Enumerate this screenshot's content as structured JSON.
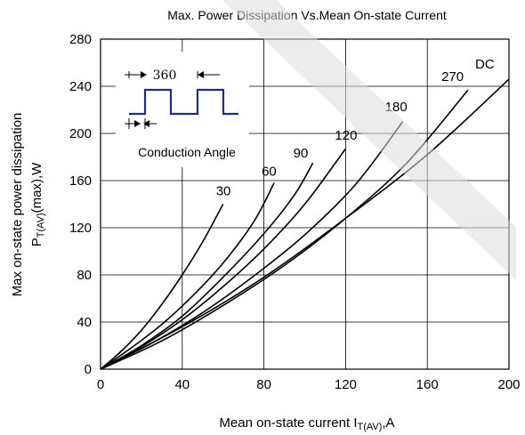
{
  "chart_data": {
    "type": "line",
    "title": "Max. Power Dissipation Vs.Mean On-state Current",
    "xlabel": "Mean on-state current I",
    "xlabel_sub": "T(AV)",
    "xlabel_suffix": ",A",
    "ylabel_line1": "Max on-state power dissipation",
    "ylabel_line2": "P",
    "ylabel_sub": "T(AV)",
    "ylabel_suffix": "(max),W",
    "xlim": [
      0,
      200
    ],
    "ylim": [
      0,
      280
    ],
    "xticks": [
      0,
      40,
      80,
      120,
      160,
      200
    ],
    "yticks": [
      0,
      40,
      80,
      120,
      160,
      200,
      240,
      280
    ],
    "grid": true,
    "series": [
      {
        "name": "30",
        "x": [
          0,
          10,
          20,
          30,
          40,
          50,
          60
        ],
        "y": [
          0,
          15,
          33,
          55,
          80,
          108,
          140
        ]
      },
      {
        "name": "60",
        "x": [
          0,
          15,
          30,
          45,
          60,
          75,
          85
        ],
        "y": [
          0,
          18,
          38,
          62,
          90,
          125,
          158
        ]
      },
      {
        "name": "90",
        "x": [
          0,
          20,
          40,
          60,
          80,
          95,
          104
        ],
        "y": [
          0,
          20,
          45,
          78,
          115,
          148,
          175
        ]
      },
      {
        "name": "120",
        "x": [
          0,
          20,
          40,
          60,
          80,
          100,
          120
        ],
        "y": [
          0,
          19,
          42,
          70,
          102,
          140,
          187
        ]
      },
      {
        "name": "180",
        "x": [
          0,
          25,
          50,
          75,
          100,
          125,
          148
        ],
        "y": [
          0,
          22,
          48,
          79,
          114,
          157,
          210
        ]
      },
      {
        "name": "270",
        "x": [
          0,
          30,
          60,
          90,
          120,
          150,
          180
        ],
        "y": [
          0,
          24,
          54,
          88,
          128,
          175,
          237
        ]
      },
      {
        "name": "DC",
        "x": [
          0,
          40,
          80,
          120,
          160,
          200
        ],
        "y": [
          0,
          36,
          78,
          128,
          182,
          246
        ]
      }
    ],
    "inset": {
      "period_label": "360",
      "caption": "Conduction Angle"
    }
  }
}
